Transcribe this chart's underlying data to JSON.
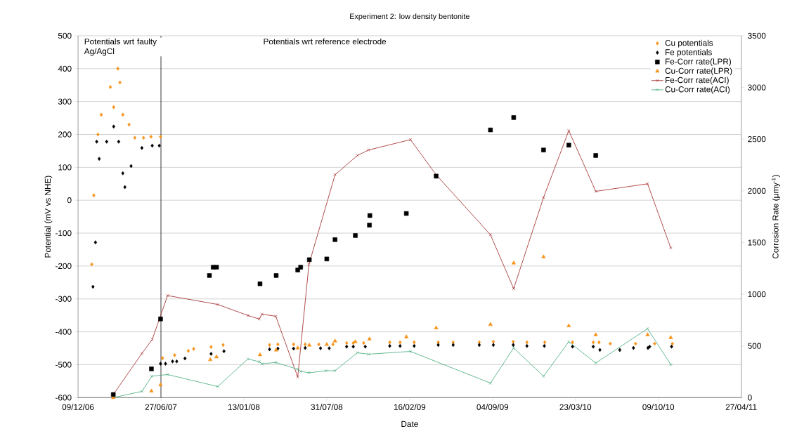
{
  "chart_data": {
    "type": "scatter",
    "title": "Experiment 2: low density bentonite",
    "xlabel": "Date",
    "ylabel": "Potential (mV vs NHE)",
    "y2label": "Corrosion Rate (µmy$^{-1}$)",
    "annotations": [
      "Potentials wrt faulty Ag/AgCl",
      "Potentials wrt reference electrode"
    ],
    "ref_lines": [
      {
        "axis": "x",
        "value": "2007-06-27",
        "color": "#000000"
      }
    ],
    "xlim": [
      "2006-12-09",
      "2011-04-27"
    ],
    "xticks": [
      {
        "value": "2006-12-09",
        "label": "09/12/06"
      },
      {
        "value": "2007-06-27",
        "label": "27/06/07"
      },
      {
        "value": "2008-01-13",
        "label": "13/01/08"
      },
      {
        "value": "2008-07-31",
        "label": "31/07/08"
      },
      {
        "value": "2009-02-16",
        "label": "16/02/09"
      },
      {
        "value": "2009-09-04",
        "label": "04/09/09"
      },
      {
        "value": "2010-03-23",
        "label": "23/03/10"
      },
      {
        "value": "2010-10-09",
        "label": "09/10/10"
      },
      {
        "value": "2011-04-27",
        "label": "27/04/11"
      }
    ],
    "ylim": [
      -600,
      500
    ],
    "yticks": [
      -600,
      -500,
      -400,
      -300,
      -200,
      -100,
      0,
      100,
      200,
      300,
      400,
      500
    ],
    "y2lim": [
      0,
      3500
    ],
    "y2ticks": [
      0,
      500,
      1000,
      1500,
      2000,
      2500,
      3000,
      3500
    ],
    "grid": "y",
    "legend": "top right",
    "series": [
      {
        "name": "Cu potentials",
        "color": "#f7941d",
        "marker": "diamond",
        "x": [
          "2007-01-11",
          "2007-01-16",
          "2007-01-26",
          "2007-02-03",
          "2007-02-25",
          "2007-03-05",
          "2007-03-15",
          "2007-03-20",
          "2007-03-27",
          "2007-04-11",
          "2007-04-25",
          "2007-05-16",
          "2007-06-03",
          "2007-06-26",
          "2007-07-01",
          "2007-07-30",
          "2007-09-01",
          "2007-09-14",
          "2007-10-26",
          "2007-11-24",
          "2008-03-15",
          "2008-04-04",
          "2008-05-12",
          "2008-06-09",
          "2008-07-12",
          "2008-08-15",
          "2008-09-17",
          "2008-10-03",
          "2008-10-28",
          "2008-12-30",
          "2009-01-24",
          "2009-02-27",
          "2009-04-26",
          "2009-06-01",
          "2009-08-03",
          "2009-09-06",
          "2009-10-24",
          "2009-11-26",
          "2010-01-08",
          "2010-03-16",
          "2010-05-05",
          "2010-05-19",
          "2010-06-15",
          "2010-08-15",
          "2010-09-30",
          "2010-11-12"
        ],
        "values": [
          -195,
          15,
          200,
          260,
          344,
          283,
          400,
          358,
          260,
          230,
          190,
          190,
          193,
          193,
          -480,
          -471,
          -458,
          -452,
          -446,
          -440,
          -440,
          -438,
          -438,
          -438,
          -438,
          -438,
          -434,
          -434,
          -434,
          -432,
          -432,
          -432,
          -432,
          -432,
          -432,
          -430,
          -430,
          -432,
          -432,
          -432,
          -432,
          -432,
          -436,
          -436,
          -436,
          -436
        ]
      },
      {
        "name": "Fe potentials",
        "color": "#000000",
        "marker": "diamond",
        "x": [
          "2007-01-14",
          "2007-01-20",
          "2007-01-23",
          "2007-01-29",
          "2007-02-16",
          "2007-03-05",
          "2007-03-17",
          "2007-03-27",
          "2007-04-01",
          "2007-04-16",
          "2007-05-12",
          "2007-06-06",
          "2007-06-23",
          "2007-06-26",
          "2007-07-08",
          "2007-07-25",
          "2007-08-04",
          "2007-08-24",
          "2007-10-26",
          "2007-11-26",
          "2008-03-15",
          "2008-04-04",
          "2008-05-12",
          "2008-06-09",
          "2008-07-16",
          "2008-08-06",
          "2008-09-17",
          "2008-10-03",
          "2008-11-01",
          "2008-12-30",
          "2009-01-24",
          "2009-02-27",
          "2009-04-26",
          "2009-06-01",
          "2009-08-03",
          "2009-09-06",
          "2009-10-24",
          "2009-11-26",
          "2010-01-07",
          "2010-03-16",
          "2010-05-05",
          "2010-05-21",
          "2010-07-08",
          "2010-08-10",
          "2010-09-14",
          "2010-09-18",
          "2010-11-10"
        ],
        "values": [
          -263,
          -128,
          178,
          126,
          178,
          224,
          178,
          82,
          40,
          104,
          159,
          166,
          166,
          -497,
          -497,
          -490,
          -490,
          -481,
          -467,
          -459,
          -453,
          -451,
          -451,
          -449,
          -450,
          -450,
          -445,
          -445,
          -445,
          -443,
          -443,
          -443,
          -440,
          -440,
          -440,
          -440,
          -440,
          -443,
          -443,
          -445,
          -445,
          -455,
          -455,
          -449,
          -449,
          -445,
          -445
        ]
      },
      {
        "name": "Fe-Corr rate(LPR)",
        "color": "#000000",
        "marker": "square",
        "axis": "y2",
        "x": [
          "2007-03-04",
          "2007-06-04",
          "2007-06-26",
          "2007-10-22",
          "2007-10-31",
          "2007-11-08",
          "2008-02-21",
          "2008-03-31",
          "2008-05-22",
          "2008-05-29",
          "2008-06-19",
          "2008-07-31",
          "2008-08-20",
          "2008-10-08",
          "2008-11-11",
          "2008-11-12",
          "2009-02-08",
          "2009-04-21",
          "2009-08-30",
          "2009-10-25",
          "2010-01-05",
          "2010-03-07",
          "2010-05-11"
        ],
        "values": [
          30,
          278,
          761,
          1181,
          1261,
          1261,
          1101,
          1181,
          1234,
          1261,
          1334,
          1341,
          1528,
          1568,
          1668,
          1761,
          1781,
          2142,
          2589,
          2709,
          2395,
          2442,
          2342
        ]
      },
      {
        "name": "Cu-Corr rate(LPR)",
        "color": "#f7941d",
        "marker": "triangle",
        "axis": "y2",
        "x": [
          "2007-03-04",
          "2007-06-04",
          "2007-06-26",
          "2007-10-24",
          "2007-11-08",
          "2008-02-21",
          "2008-03-31",
          "2008-05-22",
          "2008-06-19",
          "2008-07-31",
          "2008-08-20",
          "2008-10-08",
          "2008-11-11",
          "2009-02-08",
          "2009-04-21",
          "2009-08-30",
          "2009-10-25",
          "2010-01-05",
          "2010-03-07",
          "2010-05-11",
          "2010-09-13",
          "2010-11-08"
        ],
        "values": [
          0,
          63,
          123,
          367,
          394,
          414,
          460,
          480,
          507,
          514,
          547,
          540,
          567,
          587,
          674,
          707,
          1301,
          1361,
          694,
          607,
          607,
          580
        ]
      },
      {
        "name": "Fe-Corr rate(ACI)",
        "color": "#9b1c1c",
        "type": "line",
        "marker": "cross",
        "axis": "y2",
        "x": [
          "2007-03-04",
          "2007-05-12",
          "2007-06-06",
          "2007-07-13",
          "2007-11-11",
          "2008-01-23",
          "2008-02-19",
          "2008-02-26",
          "2008-03-30",
          "2008-05-22",
          "2008-06-18",
          "2008-08-20",
          "2008-10-13",
          "2008-11-09",
          "2009-02-18",
          "2009-04-21",
          "2009-08-30",
          "2009-10-25",
          "2010-01-05",
          "2010-03-07",
          "2010-05-11",
          "2010-09-13",
          "2010-11-08"
        ],
        "values": [
          30,
          427,
          563,
          987,
          901,
          794,
          761,
          807,
          787,
          200,
          1288,
          2155,
          2342,
          2395,
          2495,
          2155,
          1575,
          1054,
          1935,
          2582,
          1995,
          2068,
          1448
        ]
      },
      {
        "name": "Cu-Corr rate(ACI)",
        "color": "#3aa673",
        "type": "line",
        "marker": "cross",
        "axis": "y2",
        "x": [
          "2007-03-04",
          "2007-05-12",
          "2007-06-05",
          "2007-07-13",
          "2007-11-11",
          "2008-01-23",
          "2008-02-19",
          "2008-02-26",
          "2008-03-30",
          "2008-05-22",
          "2008-05-29",
          "2008-06-18",
          "2008-07-29",
          "2008-08-20",
          "2008-10-13",
          "2008-11-09",
          "2009-02-18",
          "2009-08-30",
          "2009-10-25",
          "2010-01-05",
          "2010-03-07",
          "2010-05-11",
          "2010-09-13",
          "2010-11-08"
        ],
        "values": [
          0,
          60,
          207,
          223,
          107,
          374,
          347,
          327,
          340,
          274,
          254,
          240,
          260,
          260,
          434,
          420,
          447,
          140,
          480,
          207,
          540,
          334,
          667,
          320
        ]
      }
    ]
  }
}
